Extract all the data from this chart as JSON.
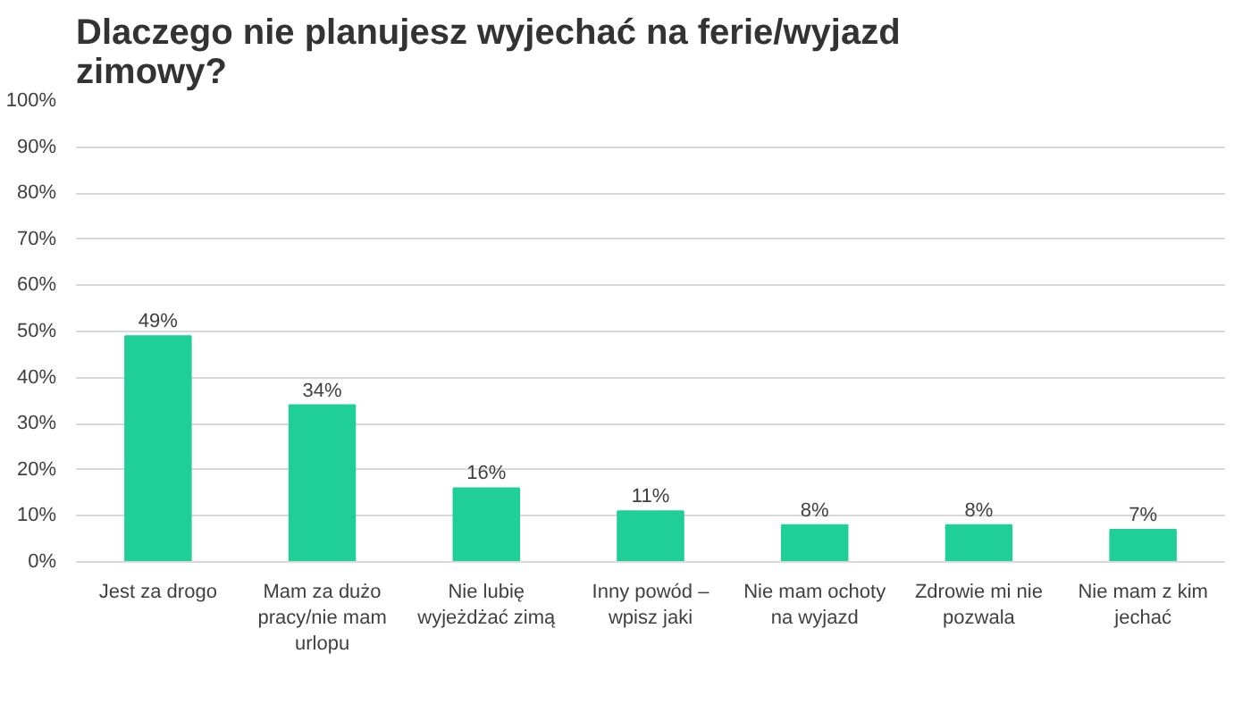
{
  "chart_data": {
    "type": "bar",
    "title": "Dlaczego nie planujesz wyjechać na ferie/wyjazd zimowy?",
    "categories": [
      "Jest za drogo",
      "Mam za dużo pracy/nie mam urlopu",
      "Nie lubię wyjeżdżać zimą",
      "Inny powód – wpisz jaki",
      "Nie mam ochoty na wyjazd",
      "Zdrowie mi nie pozwala",
      "Nie mam z kim jechać"
    ],
    "values": [
      49,
      34,
      16,
      11,
      8,
      8,
      7
    ],
    "value_labels": [
      "49%",
      "34%",
      "16%",
      "11%",
      "8%",
      "8%",
      "7%"
    ],
    "color": "#1fcf97",
    "ylim": [
      0,
      100
    ],
    "yticks": [
      {
        "value": 0,
        "label": "0%"
      },
      {
        "value": 10,
        "label": "10%"
      },
      {
        "value": 20,
        "label": "20%"
      },
      {
        "value": 30,
        "label": "30%"
      },
      {
        "value": 40,
        "label": "40%"
      },
      {
        "value": 50,
        "label": "50%"
      },
      {
        "value": 60,
        "label": "60%"
      },
      {
        "value": 70,
        "label": "70%"
      },
      {
        "value": 80,
        "label": "80%"
      },
      {
        "value": 90,
        "label": "90%"
      },
      {
        "value": 100,
        "label": "100%"
      }
    ],
    "grid": "y"
  }
}
